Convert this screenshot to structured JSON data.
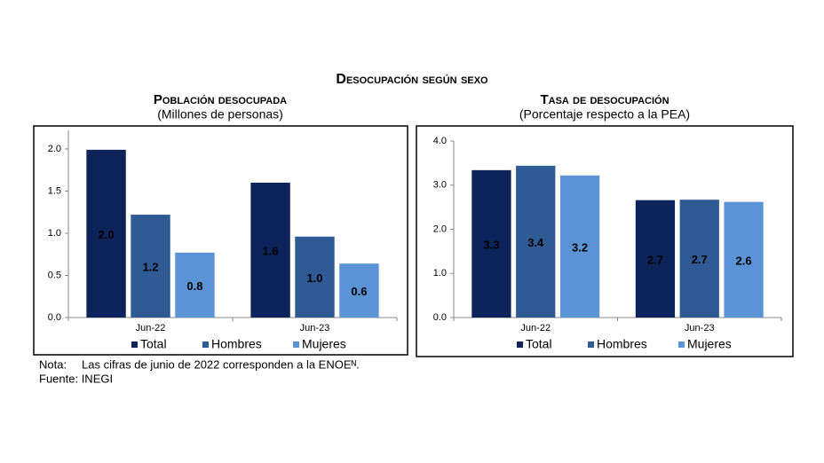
{
  "title": "Desocupación según sexo",
  "chart_data": [
    {
      "type": "bar",
      "title": "Población desocupada",
      "subtitle": "(Millones de personas)",
      "categories": [
        "Jun-22",
        "Jun-23"
      ],
      "series": [
        {
          "name": "Total",
          "color": "#0d2359",
          "label_color": "#ffffff",
          "values": [
            1.99,
            1.6
          ],
          "value_labels": [
            "2.0",
            "1.6"
          ]
        },
        {
          "name": "Hombres",
          "color": "#2f5a93",
          "label_color": "#ffffff",
          "values": [
            1.22,
            0.96
          ],
          "value_labels": [
            "1.2",
            "1.0"
          ]
        },
        {
          "name": "Mujeres",
          "color": "#5b94d6",
          "label_color": "#000000",
          "values": [
            0.77,
            0.64
          ],
          "value_labels": [
            "0.8",
            "0.6"
          ]
        }
      ],
      "ylim": [
        0,
        2.22
      ],
      "yticks": [
        {
          "value": 0,
          "label": "0.0"
        },
        {
          "value": 0.5,
          "label": "0.5"
        },
        {
          "value": 1,
          "label": "1.0"
        },
        {
          "value": 1.5,
          "label": "1.5"
        },
        {
          "value": 2,
          "label": "2.0"
        }
      ]
    },
    {
      "type": "bar",
      "title": "Tasa de desocupación",
      "subtitle": "(Porcentaje respecto a la PEA)",
      "categories": [
        "Jun-22",
        "Jun-23"
      ],
      "series": [
        {
          "name": "Total",
          "color": "#0d2359",
          "label_color": "#ffffff",
          "values": [
            3.34,
            2.66
          ],
          "value_labels": [
            "3.3",
            "2.7"
          ]
        },
        {
          "name": "Hombres",
          "color": "#2f5a93",
          "label_color": "#ffffff",
          "values": [
            3.44,
            2.67
          ],
          "value_labels": [
            "3.4",
            "2.7"
          ]
        },
        {
          "name": "Mujeres",
          "color": "#5b94d6",
          "label_color": "#000000",
          "values": [
            3.22,
            2.62
          ],
          "value_labels": [
            "3.2",
            "2.6"
          ]
        }
      ],
      "ylim": [
        0,
        4
      ],
      "yticks": [
        {
          "value": 0,
          "label": "0.0"
        },
        {
          "value": 1,
          "label": "1.0"
        },
        {
          "value": 2,
          "label": "2.0"
        },
        {
          "value": 3,
          "label": "3.0"
        },
        {
          "value": 4,
          "label": "4.0"
        }
      ]
    }
  ],
  "note_label": "Nota:",
  "note": "Las cifras de junio de 2022 corresponden a la ENOEᴺ.",
  "source": "Fuente: INEGI"
}
